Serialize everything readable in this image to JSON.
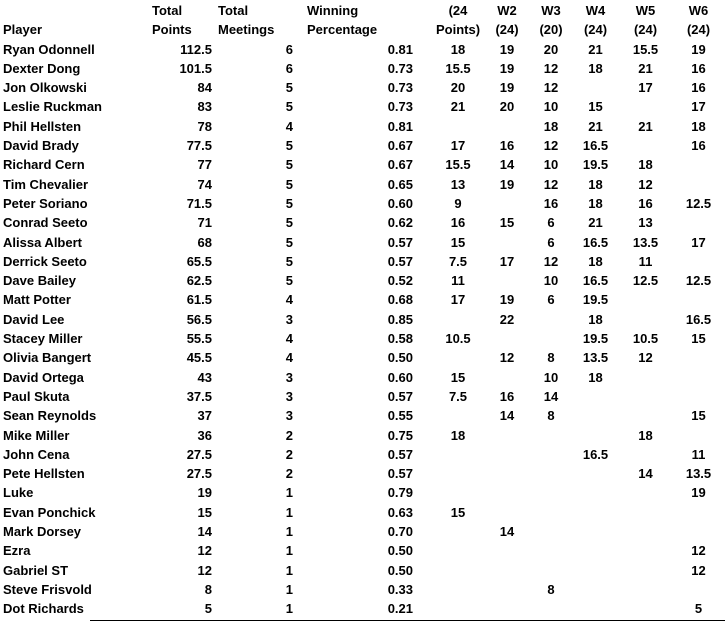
{
  "colors": {
    "text": "#000000",
    "background": "#ffffff"
  },
  "table": {
    "columns": [
      {
        "id": "player",
        "h1": "",
        "h2": "Player"
      },
      {
        "id": "total_points",
        "h1": "Total",
        "h2": "Points"
      },
      {
        "id": "total_meetings",
        "h1": "Total",
        "h2": "Meetings"
      },
      {
        "id": "winning_percentage",
        "h1": "Winning",
        "h2": "Percentage"
      },
      {
        "id": "points_24",
        "h1": "(24",
        "h2": "Points)"
      },
      {
        "id": "w2",
        "h1": "W2",
        "h2": "(24)"
      },
      {
        "id": "w3",
        "h1": "W3",
        "h2": "(20)"
      },
      {
        "id": "w4",
        "h1": "W4",
        "h2": "(24)"
      },
      {
        "id": "w5",
        "h1": "W5",
        "h2": "(24)"
      },
      {
        "id": "w6",
        "h1": "W6",
        "h2": "(24)"
      }
    ],
    "rows": [
      [
        "Ryan Odonnell",
        "112.5",
        "6",
        "0.81",
        "18",
        "19",
        "20",
        "21",
        "15.5",
        "19"
      ],
      [
        "Dexter Dong",
        "101.5",
        "6",
        "0.73",
        "15.5",
        "19",
        "12",
        "18",
        "21",
        "16"
      ],
      [
        "Jon Olkowski",
        "84",
        "5",
        "0.73",
        "20",
        "19",
        "12",
        "",
        "17",
        "16"
      ],
      [
        "Leslie Ruckman",
        "83",
        "5",
        "0.73",
        "21",
        "20",
        "10",
        "15",
        "",
        "17"
      ],
      [
        "Phil Hellsten",
        "78",
        "4",
        "0.81",
        "",
        "",
        "18",
        "21",
        "21",
        "18"
      ],
      [
        "David Brady",
        "77.5",
        "5",
        "0.67",
        "17",
        "16",
        "12",
        "16.5",
        "",
        "16"
      ],
      [
        "Richard Cern",
        "77",
        "5",
        "0.67",
        "15.5",
        "14",
        "10",
        "19.5",
        "18",
        ""
      ],
      [
        "Tim Chevalier",
        "74",
        "5",
        "0.65",
        "13",
        "19",
        "12",
        "18",
        "12",
        ""
      ],
      [
        "Peter Soriano",
        "71.5",
        "5",
        "0.60",
        "9",
        "",
        "16",
        "18",
        "16",
        "12.5"
      ],
      [
        "Conrad Seeto",
        "71",
        "5",
        "0.62",
        "16",
        "15",
        "6",
        "21",
        "13",
        ""
      ],
      [
        "Alissa Albert",
        "68",
        "5",
        "0.57",
        "15",
        "",
        "6",
        "16.5",
        "13.5",
        "17"
      ],
      [
        "Derrick Seeto",
        "65.5",
        "5",
        "0.57",
        "7.5",
        "17",
        "12",
        "18",
        "11",
        ""
      ],
      [
        "Dave Bailey",
        "62.5",
        "5",
        "0.52",
        "11",
        "",
        "10",
        "16.5",
        "12.5",
        "12.5"
      ],
      [
        "Matt Potter",
        "61.5",
        "4",
        "0.68",
        "17",
        "19",
        "6",
        "19.5",
        "",
        ""
      ],
      [
        "David Lee",
        "56.5",
        "3",
        "0.85",
        "",
        "22",
        "",
        "18",
        "",
        "16.5"
      ],
      [
        "Stacey Miller",
        "55.5",
        "4",
        "0.58",
        "10.5",
        "",
        "",
        "19.5",
        "10.5",
        "15"
      ],
      [
        "Olivia Bangert",
        "45.5",
        "4",
        "0.50",
        "",
        "12",
        "8",
        "13.5",
        "12",
        ""
      ],
      [
        "David Ortega",
        "43",
        "3",
        "0.60",
        "15",
        "",
        "10",
        "18",
        "",
        ""
      ],
      [
        "Paul Skuta",
        "37.5",
        "3",
        "0.57",
        "7.5",
        "16",
        "14",
        "",
        "",
        ""
      ],
      [
        "Sean Reynolds",
        "37",
        "3",
        "0.55",
        "",
        "14",
        "8",
        "",
        "",
        "15"
      ],
      [
        "Mike Miller",
        "36",
        "2",
        "0.75",
        "18",
        "",
        "",
        "",
        "18",
        ""
      ],
      [
        "John Cena",
        "27.5",
        "2",
        "0.57",
        "",
        "",
        "",
        "16.5",
        "",
        "11"
      ],
      [
        "Pete Hellsten",
        "27.5",
        "2",
        "0.57",
        "",
        "",
        "",
        "",
        "14",
        "13.5"
      ],
      [
        "Luke",
        "19",
        "1",
        "0.79",
        "",
        "",
        "",
        "",
        "",
        "19"
      ],
      [
        "Evan Ponchick",
        "15",
        "1",
        "0.63",
        "15",
        "",
        "",
        "",
        "",
        ""
      ],
      [
        "Mark Dorsey",
        "14",
        "1",
        "0.70",
        "",
        "14",
        "",
        "",
        "",
        ""
      ],
      [
        "Ezra",
        "12",
        "1",
        "0.50",
        "",
        "",
        "",
        "",
        "",
        "12"
      ],
      [
        "Gabriel ST",
        "12",
        "1",
        "0.50",
        "",
        "",
        "",
        "",
        "",
        "12"
      ],
      [
        "Steve Frisvold",
        "8",
        "1",
        "0.33",
        "",
        "",
        "8",
        "",
        "",
        ""
      ],
      [
        "Dot Richards",
        "5",
        "1",
        "0.21",
        "",
        "",
        "",
        "",
        "",
        "5"
      ]
    ]
  }
}
